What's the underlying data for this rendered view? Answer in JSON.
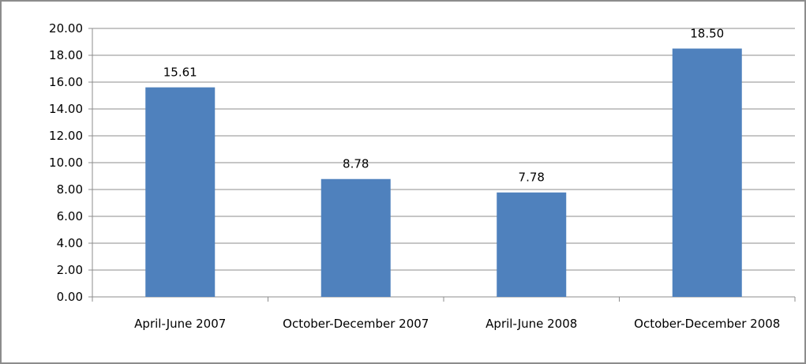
{
  "chart_data": {
    "type": "bar",
    "categories": [
      "April-June 2007",
      "October-December 2007",
      "April-June 2008",
      "October-December 2008"
    ],
    "values": [
      15.61,
      8.78,
      7.78,
      18.5
    ],
    "value_labels": [
      "15.61",
      "8.78",
      "7.78",
      "18.50"
    ],
    "color": "#4f81bd",
    "ylim": [
      0,
      20
    ],
    "yticks": [
      {
        "value": 0,
        "label": "0.00"
      },
      {
        "value": 2,
        "label": "2.00"
      },
      {
        "value": 4,
        "label": "4.00"
      },
      {
        "value": 6,
        "label": "6.00"
      },
      {
        "value": 8,
        "label": "8.00"
      },
      {
        "value": 10,
        "label": "10.00"
      },
      {
        "value": 12,
        "label": "12.00"
      },
      {
        "value": 14,
        "label": "14.00"
      },
      {
        "value": 16,
        "label": "16.00"
      },
      {
        "value": 18,
        "label": "18.00"
      },
      {
        "value": 20,
        "label": "20.00"
      }
    ],
    "grid": true
  }
}
